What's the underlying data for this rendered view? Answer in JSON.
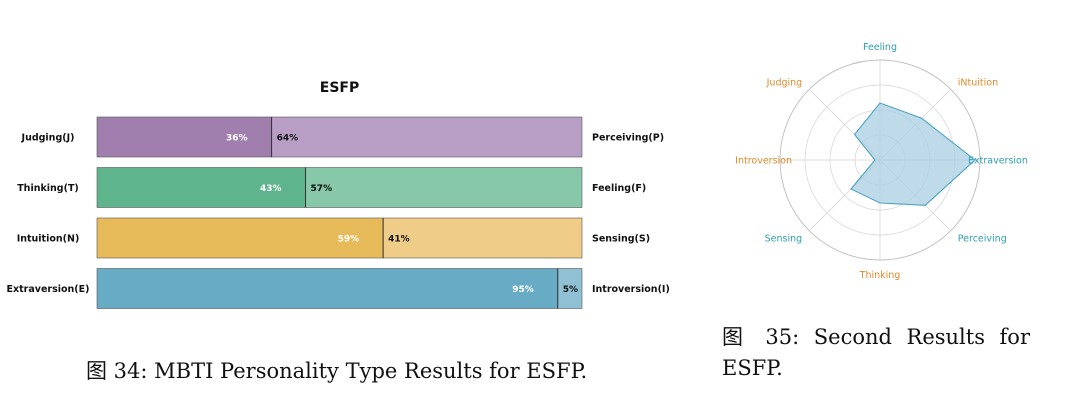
{
  "chart_data": [
    {
      "type": "bar",
      "orientation": "horizontal-stacked",
      "title": "ESFP",
      "rows": [
        {
          "left_label": "Judging(J)",
          "right_label": "Perceiving(P)",
          "left_value": 36,
          "right_value": 64,
          "left_text": "36%",
          "right_text": "64%",
          "color_dark": "#a07eae",
          "color_light": "#b89ec5"
        },
        {
          "left_label": "Thinking(T)",
          "right_label": "Feeling(F)",
          "left_value": 43,
          "right_value": 57,
          "left_text": "43%",
          "right_text": "57%",
          "color_dark": "#5eb48c",
          "color_light": "#86c8a9"
        },
        {
          "left_label": "Intuition(N)",
          "right_label": "Sensing(S)",
          "left_value": 59,
          "right_value": 41,
          "left_text": "59%",
          "right_text": "41%",
          "color_dark": "#e8bb5a",
          "color_light": "#efcc88"
        },
        {
          "left_label": "Extraversion(E)",
          "right_label": "Introversion(I)",
          "left_value": 95,
          "right_value": 5,
          "left_text": "95%",
          "right_text": "5%",
          "color_dark": "#67abc4",
          "color_light": "#8fc0d3"
        }
      ],
      "xlim": [
        0,
        100
      ]
    },
    {
      "type": "radar",
      "axes": [
        {
          "label": "Feeling",
          "value": 57,
          "color": "#2c9fb0"
        },
        {
          "label": "iNtuition",
          "value": 59,
          "color": "#e08a2a"
        },
        {
          "label": "Extraversion",
          "value": 95,
          "color": "#2c9fb0"
        },
        {
          "label": "Perceiving",
          "value": 64,
          "color": "#2c9fb0"
        },
        {
          "label": "Thinking",
          "value": 43,
          "color": "#e08a2a"
        },
        {
          "label": "Sensing",
          "value": 41,
          "color": "#2c9fb0"
        },
        {
          "label": "Introversion",
          "value": 5,
          "color": "#e08a2a"
        },
        {
          "label": "Judging",
          "value": 36,
          "color": "#e08a2a"
        }
      ],
      "rlim": [
        0,
        100
      ],
      "grid_levels": 4,
      "fill_color": "#a9cfe3",
      "line_color": "#4da4c0"
    }
  ],
  "captions": {
    "fig34": "图 34: MBTI Personality Type Results for ESFP.",
    "fig35": "图 35: Second Results for ESFP."
  }
}
